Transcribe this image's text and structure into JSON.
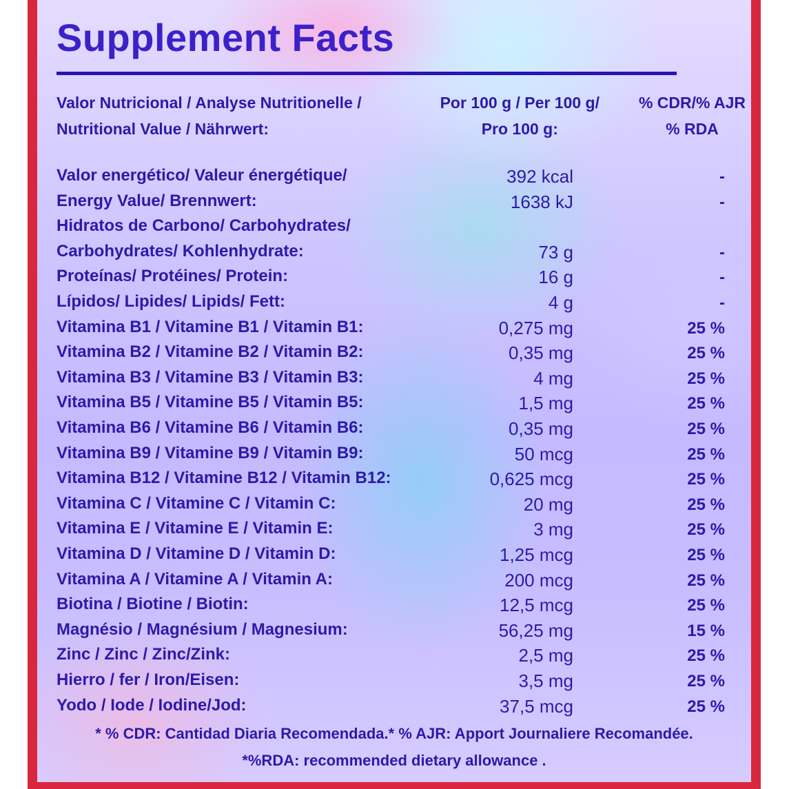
{
  "title": "Supplement Facts",
  "header": {
    "col1_line1": "Valor Nutricional / Analyse Nutritionelle /",
    "col1_line2": "Nutritional Value / Nährwert:",
    "col2_line1": "Por 100 g / Per 100 g/",
    "col2_line2": "Pro 100 g:",
    "col3_line1": "% CDR/% AJR",
    "col3_line2": "% RDA"
  },
  "rows": [
    {
      "name": "Valor energético/ Valeur énergétique/",
      "amount": "392 kcal",
      "pct": "-"
    },
    {
      "name": "Energy Value/ Brennwert:",
      "amount": "1638 kJ",
      "pct": "-"
    },
    {
      "name": "Hidratos de Carbono/ Carbohydrates/",
      "amount": "",
      "pct": ""
    },
    {
      "name": "Carbohydrates/ Kohlenhydrate:",
      "amount": "73 g",
      "pct": "-"
    },
    {
      "name": "Proteínas/ Protéines/ Protein:",
      "amount": "16 g",
      "pct": "-"
    },
    {
      "name": "Lípidos/ Lipides/ Lipids/ Fett:",
      "amount": "4 g",
      "pct": "-"
    },
    {
      "name": "Vitamina B1 / Vitamine B1 / Vitamin B1:",
      "amount": "0,275 mg",
      "pct": "25 %"
    },
    {
      "name": "Vitamina B2 / Vitamine B2 / Vitamin B2:",
      "amount": "0,35 mg",
      "pct": "25 %"
    },
    {
      "name": "Vitamina B3 / Vitamine B3 / Vitamin B3:",
      "amount": "4 mg",
      "pct": "25 %"
    },
    {
      "name": "Vitamina B5 / Vitamine B5 / Vitamin B5:",
      "amount": "1,5 mg",
      "pct": "25 %"
    },
    {
      "name": "Vitamina B6 / Vitamine B6 / Vitamin B6:",
      "amount": "0,35 mg",
      "pct": "25 %"
    },
    {
      "name": "Vitamina B9 / Vitamine B9 / Vitamin B9:",
      "amount": "50 mcg",
      "pct": "25 %"
    },
    {
      "name": "Vitamina B12 / Vitamine B12 / Vitamin B12:",
      "amount": "0,625 mcg",
      "pct": "25 %"
    },
    {
      "name": "Vitamina C / Vitamine C / Vitamin C:",
      "amount": "20 mg",
      "pct": "25 %"
    },
    {
      "name": "Vitamina E / Vitamine E / Vitamin E:",
      "amount": "3 mg",
      "pct": "25 %"
    },
    {
      "name": "Vitamina D / Vitamine D / Vitamin D:",
      "amount": "1,25 mcg",
      "pct": "25 %"
    },
    {
      "name": "Vitamina A / Vitamine A / Vitamin A:",
      "amount": "200 mcg",
      "pct": "25 %"
    },
    {
      "name": "Biotina / Biotine / Biotin:",
      "amount": "12,5 mcg",
      "pct": "25 %"
    },
    {
      "name": "Magnésio / Magnésium / Magnesium:",
      "amount": "56,25 mg",
      "pct": "15 %"
    },
    {
      "name": "Zinc / Zinc / Zinc/Zink:",
      "amount": "2,5 mg",
      "pct": "25 %"
    },
    {
      "name": "Hierro / fer / Iron/Eisen:",
      "amount": "3,5 mg",
      "pct": "25 %"
    },
    {
      "name": "Yodo / Iode / Iodine/Jod:",
      "amount": "37,5 mcg",
      "pct": "25 %"
    }
  ],
  "footnotes": {
    "line1": "* % CDR: Cantidad Diaria Recomendada.* % AJR: Apport Journaliere Recomandée.",
    "line2": "*%RDA: recommended dietary allowance ."
  },
  "colors": {
    "text": "#2c1aa8",
    "title": "#3b21c8",
    "border": "#d8273f"
  }
}
